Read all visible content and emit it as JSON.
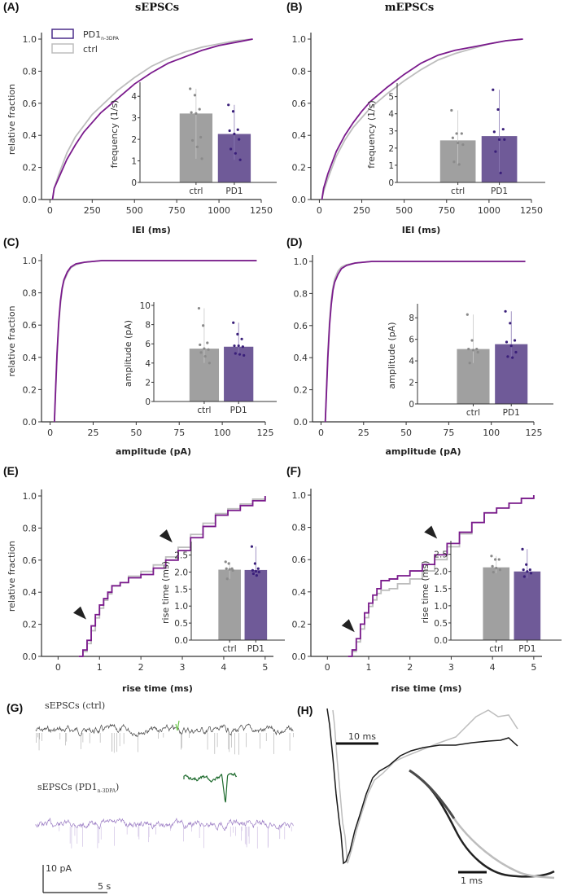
{
  "colors": {
    "pd1": "#7a1a8c",
    "ctrl": "#bdbdbd",
    "bar_ctrl": "#a0a0a0",
    "bar_pd1": "#6f5a98",
    "dot_ctrl": "#8a8a8a",
    "dot_pd1": "#3a1f7a",
    "legend_pd1": "#4b2d8a",
    "green_event": "#1e6b2e",
    "axis": "#333333",
    "arrow": "#222222"
  },
  "legend": {
    "pd1_label": "PD1",
    "pd1_subscript": "n-3DPA",
    "ctrl_label": "ctrl"
  },
  "chart_data": [
    {
      "id": "A",
      "panel_label": "(A)",
      "title": "sEPSCs",
      "type": "line",
      "xlabel": "IEI (ms)",
      "ylabel": "relative fraction",
      "xlim": [
        -50,
        1250
      ],
      "ylim": [
        0,
        1.0
      ],
      "xticks": [
        0,
        250,
        500,
        750,
        1000,
        1250
      ],
      "yticks": [
        "0.0",
        "0.2",
        "0.4",
        "0.6",
        "0.8",
        "1.0"
      ],
      "legend": "top-left",
      "series": [
        {
          "name": "PD1",
          "x": [
            15,
            25,
            50,
            100,
            150,
            200,
            250,
            300,
            400,
            500,
            600,
            700,
            800,
            900,
            1000,
            1100,
            1200
          ],
          "y": [
            0.0,
            0.07,
            0.13,
            0.25,
            0.34,
            0.42,
            0.48,
            0.54,
            0.63,
            0.72,
            0.79,
            0.85,
            0.89,
            0.93,
            0.96,
            0.98,
            1.0
          ]
        },
        {
          "name": "ctrl",
          "x": [
            15,
            25,
            50,
            100,
            150,
            200,
            250,
            300,
            400,
            500,
            600,
            700,
            800,
            900,
            1000,
            1100,
            1200
          ],
          "y": [
            0.0,
            0.07,
            0.15,
            0.29,
            0.39,
            0.46,
            0.53,
            0.58,
            0.68,
            0.76,
            0.83,
            0.88,
            0.92,
            0.95,
            0.97,
            0.99,
            1.0
          ]
        }
      ],
      "inset": {
        "type": "bar",
        "ylabel": "frequency (1/s)",
        "ylim": [
          0,
          4.5
        ],
        "yticks": [
          0,
          1,
          2,
          3,
          4
        ],
        "categories": [
          "ctrl",
          "PD1"
        ],
        "values": [
          3.2,
          2.25
        ],
        "err_high": [
          4.35,
          3.6
        ],
        "err_low": [
          1.1,
          1.05
        ],
        "points": [
          [
            4.35,
            4.05,
            3.4,
            3.25,
            3.2,
            2.1,
            1.95,
            1.65,
            1.1
          ],
          [
            3.6,
            3.3,
            2.45,
            2.4,
            2.25,
            2.0,
            1.55,
            1.35,
            1.05
          ]
        ]
      }
    },
    {
      "id": "B",
      "panel_label": "(B)",
      "title": "mEPSCs",
      "type": "line",
      "xlabel": "IEI (ms)",
      "ylabel": "",
      "xlim": [
        -50,
        1250
      ],
      "ylim": [
        0,
        1.0
      ],
      "xticks": [
        0,
        250,
        500,
        750,
        1000,
        1250
      ],
      "yticks": [
        "0.0",
        "0.2",
        "0.4",
        "0.6",
        "0.8",
        "1.0"
      ],
      "series": [
        {
          "name": "PD1",
          "x": [
            15,
            25,
            50,
            100,
            150,
            200,
            250,
            300,
            400,
            500,
            600,
            700,
            800,
            900,
            1000,
            1100,
            1200
          ],
          "y": [
            0.0,
            0.07,
            0.16,
            0.3,
            0.4,
            0.48,
            0.55,
            0.61,
            0.7,
            0.78,
            0.85,
            0.9,
            0.93,
            0.95,
            0.97,
            0.99,
            1.0
          ]
        },
        {
          "name": "ctrl",
          "x": [
            15,
            25,
            50,
            100,
            150,
            200,
            250,
            300,
            400,
            500,
            600,
            700,
            800,
            900,
            1000,
            1100,
            1200
          ],
          "y": [
            0.0,
            0.05,
            0.13,
            0.27,
            0.37,
            0.45,
            0.51,
            0.57,
            0.66,
            0.74,
            0.81,
            0.87,
            0.91,
            0.94,
            0.97,
            0.99,
            1.0
          ]
        }
      ],
      "inset": {
        "type": "bar",
        "ylabel": "frequency (1/s)",
        "ylim": [
          0,
          5.6
        ],
        "yticks": [
          0,
          1,
          2,
          3,
          4,
          5
        ],
        "categories": [
          "ctrl",
          "PD1"
        ],
        "values": [
          2.45,
          2.7
        ],
        "err_high": [
          4.2,
          5.4
        ],
        "err_low": [
          1.05,
          0.55
        ],
        "points": [
          [
            4.2,
            2.85,
            2.85,
            2.6,
            2.3,
            2.2,
            1.2,
            1.05
          ],
          [
            5.4,
            4.25,
            3.1,
            2.95,
            2.5,
            2.5,
            1.8,
            0.55
          ]
        ]
      }
    },
    {
      "id": "C",
      "panel_label": "(C)",
      "type": "line",
      "xlabel": "amplitude (pA)",
      "ylabel": "relative fraction",
      "xlim": [
        -5,
        125
      ],
      "ylim": [
        0,
        1.0
      ],
      "xticks": [
        0,
        25,
        50,
        75,
        100,
        125
      ],
      "yticks": [
        "0.0",
        "0.2",
        "0.4",
        "0.6",
        "0.8",
        "1.0"
      ],
      "series": [
        {
          "name": "PD1",
          "x": [
            2.5,
            3,
            4,
            5,
            6,
            7,
            8,
            10,
            12,
            15,
            20,
            30,
            50,
            120
          ],
          "y": [
            0.0,
            0.15,
            0.42,
            0.62,
            0.75,
            0.83,
            0.88,
            0.93,
            0.96,
            0.98,
            0.99,
            1.0,
            1.0,
            1.0
          ]
        },
        {
          "name": "ctrl",
          "x": [
            2.5,
            3,
            4,
            5,
            6,
            7,
            8,
            10,
            12,
            15,
            20,
            30,
            50,
            120
          ],
          "y": [
            0.0,
            0.13,
            0.4,
            0.6,
            0.73,
            0.82,
            0.87,
            0.92,
            0.955,
            0.975,
            0.99,
            1.0,
            1.0,
            1.0
          ]
        }
      ],
      "inset": {
        "type": "bar",
        "ylabel": "amplitude (pA)",
        "ylim": [
          0,
          10
        ],
        "yticks": [
          0,
          2,
          4,
          6,
          8,
          10
        ],
        "categories": [
          "ctrl",
          "PD1"
        ],
        "values": [
          5.5,
          5.7
        ],
        "err_high": [
          9.7,
          8.2
        ],
        "err_low": [
          4.0,
          4.8
        ],
        "points": [
          [
            9.7,
            7.9,
            6.1,
            5.9,
            5.5,
            5.4,
            5.1,
            4.7,
            4.0
          ],
          [
            8.2,
            7.0,
            6.5,
            5.8,
            5.8,
            5.7,
            5.0,
            4.9,
            4.8
          ]
        ]
      }
    },
    {
      "id": "D",
      "panel_label": "(D)",
      "type": "line",
      "xlabel": "amplitude (pA)",
      "ylabel": "",
      "xlim": [
        -5,
        125
      ],
      "ylim": [
        0,
        1.0
      ],
      "xticks": [
        0,
        25,
        50,
        75,
        100,
        125
      ],
      "yticks": [
        "0.0",
        "0.2",
        "0.4",
        "0.6",
        "0.8",
        "1.0"
      ],
      "series": [
        {
          "name": "PD1",
          "x": [
            2.5,
            3,
            4,
            5,
            6,
            7,
            8,
            10,
            12,
            15,
            20,
            30,
            50,
            120
          ],
          "y": [
            0.0,
            0.13,
            0.4,
            0.6,
            0.73,
            0.82,
            0.87,
            0.92,
            0.955,
            0.975,
            0.99,
            1.0,
            1.0,
            1.0
          ]
        },
        {
          "name": "ctrl",
          "x": [
            2.5,
            3,
            4,
            5,
            6,
            7,
            8,
            10,
            12,
            15,
            20,
            30,
            50,
            120
          ],
          "y": [
            0.0,
            0.15,
            0.43,
            0.63,
            0.76,
            0.84,
            0.89,
            0.94,
            0.965,
            0.98,
            0.99,
            1.0,
            1.0,
            1.0
          ]
        }
      ],
      "inset": {
        "type": "bar",
        "ylabel": "amplitude (pA)",
        "ylim": [
          0,
          9
        ],
        "yticks": [
          0,
          2,
          4,
          6,
          8
        ],
        "categories": [
          "ctrl",
          "PD1"
        ],
        "values": [
          5.1,
          5.55
        ],
        "err_high": [
          8.3,
          8.6
        ],
        "err_low": [
          3.8,
          4.3
        ],
        "points": [
          [
            8.3,
            5.9,
            5.1,
            5.1,
            5.0,
            4.8,
            3.8
          ],
          [
            8.6,
            7.5,
            5.9,
            5.75,
            5.4,
            4.8,
            4.4,
            4.3
          ]
        ]
      }
    },
    {
      "id": "E",
      "panel_label": "(E)",
      "type": "line",
      "step": true,
      "xlabel": "rise time (ms)",
      "ylabel": "relative fraction",
      "xlim": [
        -0.4,
        5.2
      ],
      "ylim": [
        0,
        1.0
      ],
      "xticks": [
        0,
        1,
        2,
        3,
        4,
        5
      ],
      "yticks": [
        "0.0",
        "0.2",
        "0.4",
        "0.6",
        "0.8",
        "1.0"
      ],
      "arrows": [
        [
          0.72,
          0.22
        ],
        [
          2.8,
          0.7
        ]
      ],
      "series": [
        {
          "name": "PD1",
          "x": [
            0.5,
            0.6,
            0.7,
            0.8,
            0.9,
            1.0,
            1.1,
            1.2,
            1.3,
            1.5,
            1.7,
            2.0,
            2.3,
            2.6,
            2.9,
            3.2,
            3.5,
            3.8,
            4.1,
            4.4,
            4.7,
            5.0
          ],
          "y": [
            0.0,
            0.04,
            0.1,
            0.19,
            0.26,
            0.32,
            0.36,
            0.4,
            0.44,
            0.46,
            0.49,
            0.51,
            0.55,
            0.6,
            0.66,
            0.74,
            0.81,
            0.88,
            0.91,
            0.94,
            0.97,
            1.0
          ]
        },
        {
          "name": "ctrl",
          "x": [
            0.5,
            0.6,
            0.7,
            0.8,
            0.9,
            1.0,
            1.1,
            1.2,
            1.3,
            1.5,
            1.7,
            2.0,
            2.3,
            2.6,
            2.9,
            3.2,
            3.5,
            3.8,
            4.1,
            4.4,
            4.7,
            5.0
          ],
          "y": [
            0.0,
            0.03,
            0.08,
            0.16,
            0.24,
            0.3,
            0.35,
            0.39,
            0.44,
            0.46,
            0.5,
            0.53,
            0.57,
            0.62,
            0.68,
            0.76,
            0.83,
            0.89,
            0.92,
            0.95,
            0.98,
            1.0
          ]
        }
      ],
      "inset": {
        "type": "bar",
        "ylabel": "rise time (ms)",
        "ylim": [
          0,
          2.8
        ],
        "yticks": [
          "0.0",
          "0.5",
          "1.0",
          "1.5",
          "2.0",
          "2.5"
        ],
        "categories": [
          "ctrl",
          "PD1"
        ],
        "values": [
          2.07,
          2.06
        ],
        "err_high": [
          2.3,
          2.75
        ],
        "err_low": [
          1.8,
          1.9
        ],
        "points": [
          [
            2.3,
            2.25,
            2.1,
            2.1,
            2.08,
            2.05,
            1.8
          ],
          [
            2.75,
            2.25,
            2.1,
            2.05,
            2.02,
            2.0,
            1.95,
            1.9
          ]
        ]
      }
    },
    {
      "id": "F",
      "panel_label": "(F)",
      "type": "line",
      "step": true,
      "xlabel": "rise time (ms)",
      "ylabel": "",
      "xlim": [
        -0.4,
        5.2
      ],
      "ylim": [
        0,
        1.0
      ],
      "xticks": [
        0,
        1,
        2,
        3,
        4,
        5
      ],
      "yticks": [
        "0.0",
        "0.2",
        "0.4",
        "0.6",
        "0.8",
        "1.0"
      ],
      "arrows": [
        [
          0.7,
          0.14
        ],
        [
          2.7,
          0.72
        ]
      ],
      "series": [
        {
          "name": "PD1",
          "x": [
            0.5,
            0.6,
            0.7,
            0.8,
            0.9,
            1.0,
            1.1,
            1.2,
            1.3,
            1.5,
            1.7,
            2.0,
            2.3,
            2.6,
            2.9,
            3.2,
            3.5,
            3.8,
            4.1,
            4.4,
            4.7,
            5.0
          ],
          "y": [
            0.0,
            0.04,
            0.11,
            0.2,
            0.27,
            0.33,
            0.38,
            0.42,
            0.47,
            0.48,
            0.5,
            0.53,
            0.57,
            0.63,
            0.7,
            0.77,
            0.83,
            0.89,
            0.92,
            0.95,
            0.98,
            1.0
          ]
        },
        {
          "name": "ctrl",
          "x": [
            0.5,
            0.6,
            0.7,
            0.8,
            0.9,
            1.0,
            1.1,
            1.2,
            1.3,
            1.5,
            1.7,
            2.0,
            2.3,
            2.6,
            2.9,
            3.2,
            3.5,
            3.8,
            4.1,
            4.4,
            4.7,
            5.0
          ],
          "y": [
            0.0,
            0.03,
            0.09,
            0.17,
            0.24,
            0.31,
            0.35,
            0.39,
            0.41,
            0.42,
            0.45,
            0.48,
            0.53,
            0.6,
            0.68,
            0.76,
            0.83,
            0.89,
            0.92,
            0.95,
            0.98,
            1.0
          ]
        }
      ],
      "inset": {
        "type": "bar",
        "ylabel": "rise time (ms)",
        "ylim": [
          0,
          2.8
        ],
        "yticks": [
          "0.0",
          "0.5",
          "1.0",
          "1.5",
          "2.0",
          "2.5"
        ],
        "categories": [
          "ctrl",
          "PD1"
        ],
        "values": [
          2.12,
          2.0
        ],
        "err_high": [
          2.45,
          2.65
        ],
        "err_low": [
          1.95,
          1.8
        ],
        "points": [
          [
            2.45,
            2.35,
            2.35,
            2.15,
            2.1,
            2.05,
            1.98
          ],
          [
            2.65,
            2.2,
            2.05,
            2.05,
            2.0,
            1.95,
            1.85
          ]
        ]
      }
    }
  ],
  "panel_g": {
    "panel_label": "(G)",
    "trace1_label": "sEPSCs (ctrl)",
    "trace2_label": "sEPSCs (PD1",
    "trace2_sub": "n-3DPA",
    "trace2_close": ")",
    "scale_y": "10 pA",
    "scale_x": "5 s"
  },
  "panel_h": {
    "panel_label": "(H)",
    "scale_big": "10 ms",
    "scale_small": "1 ms"
  }
}
